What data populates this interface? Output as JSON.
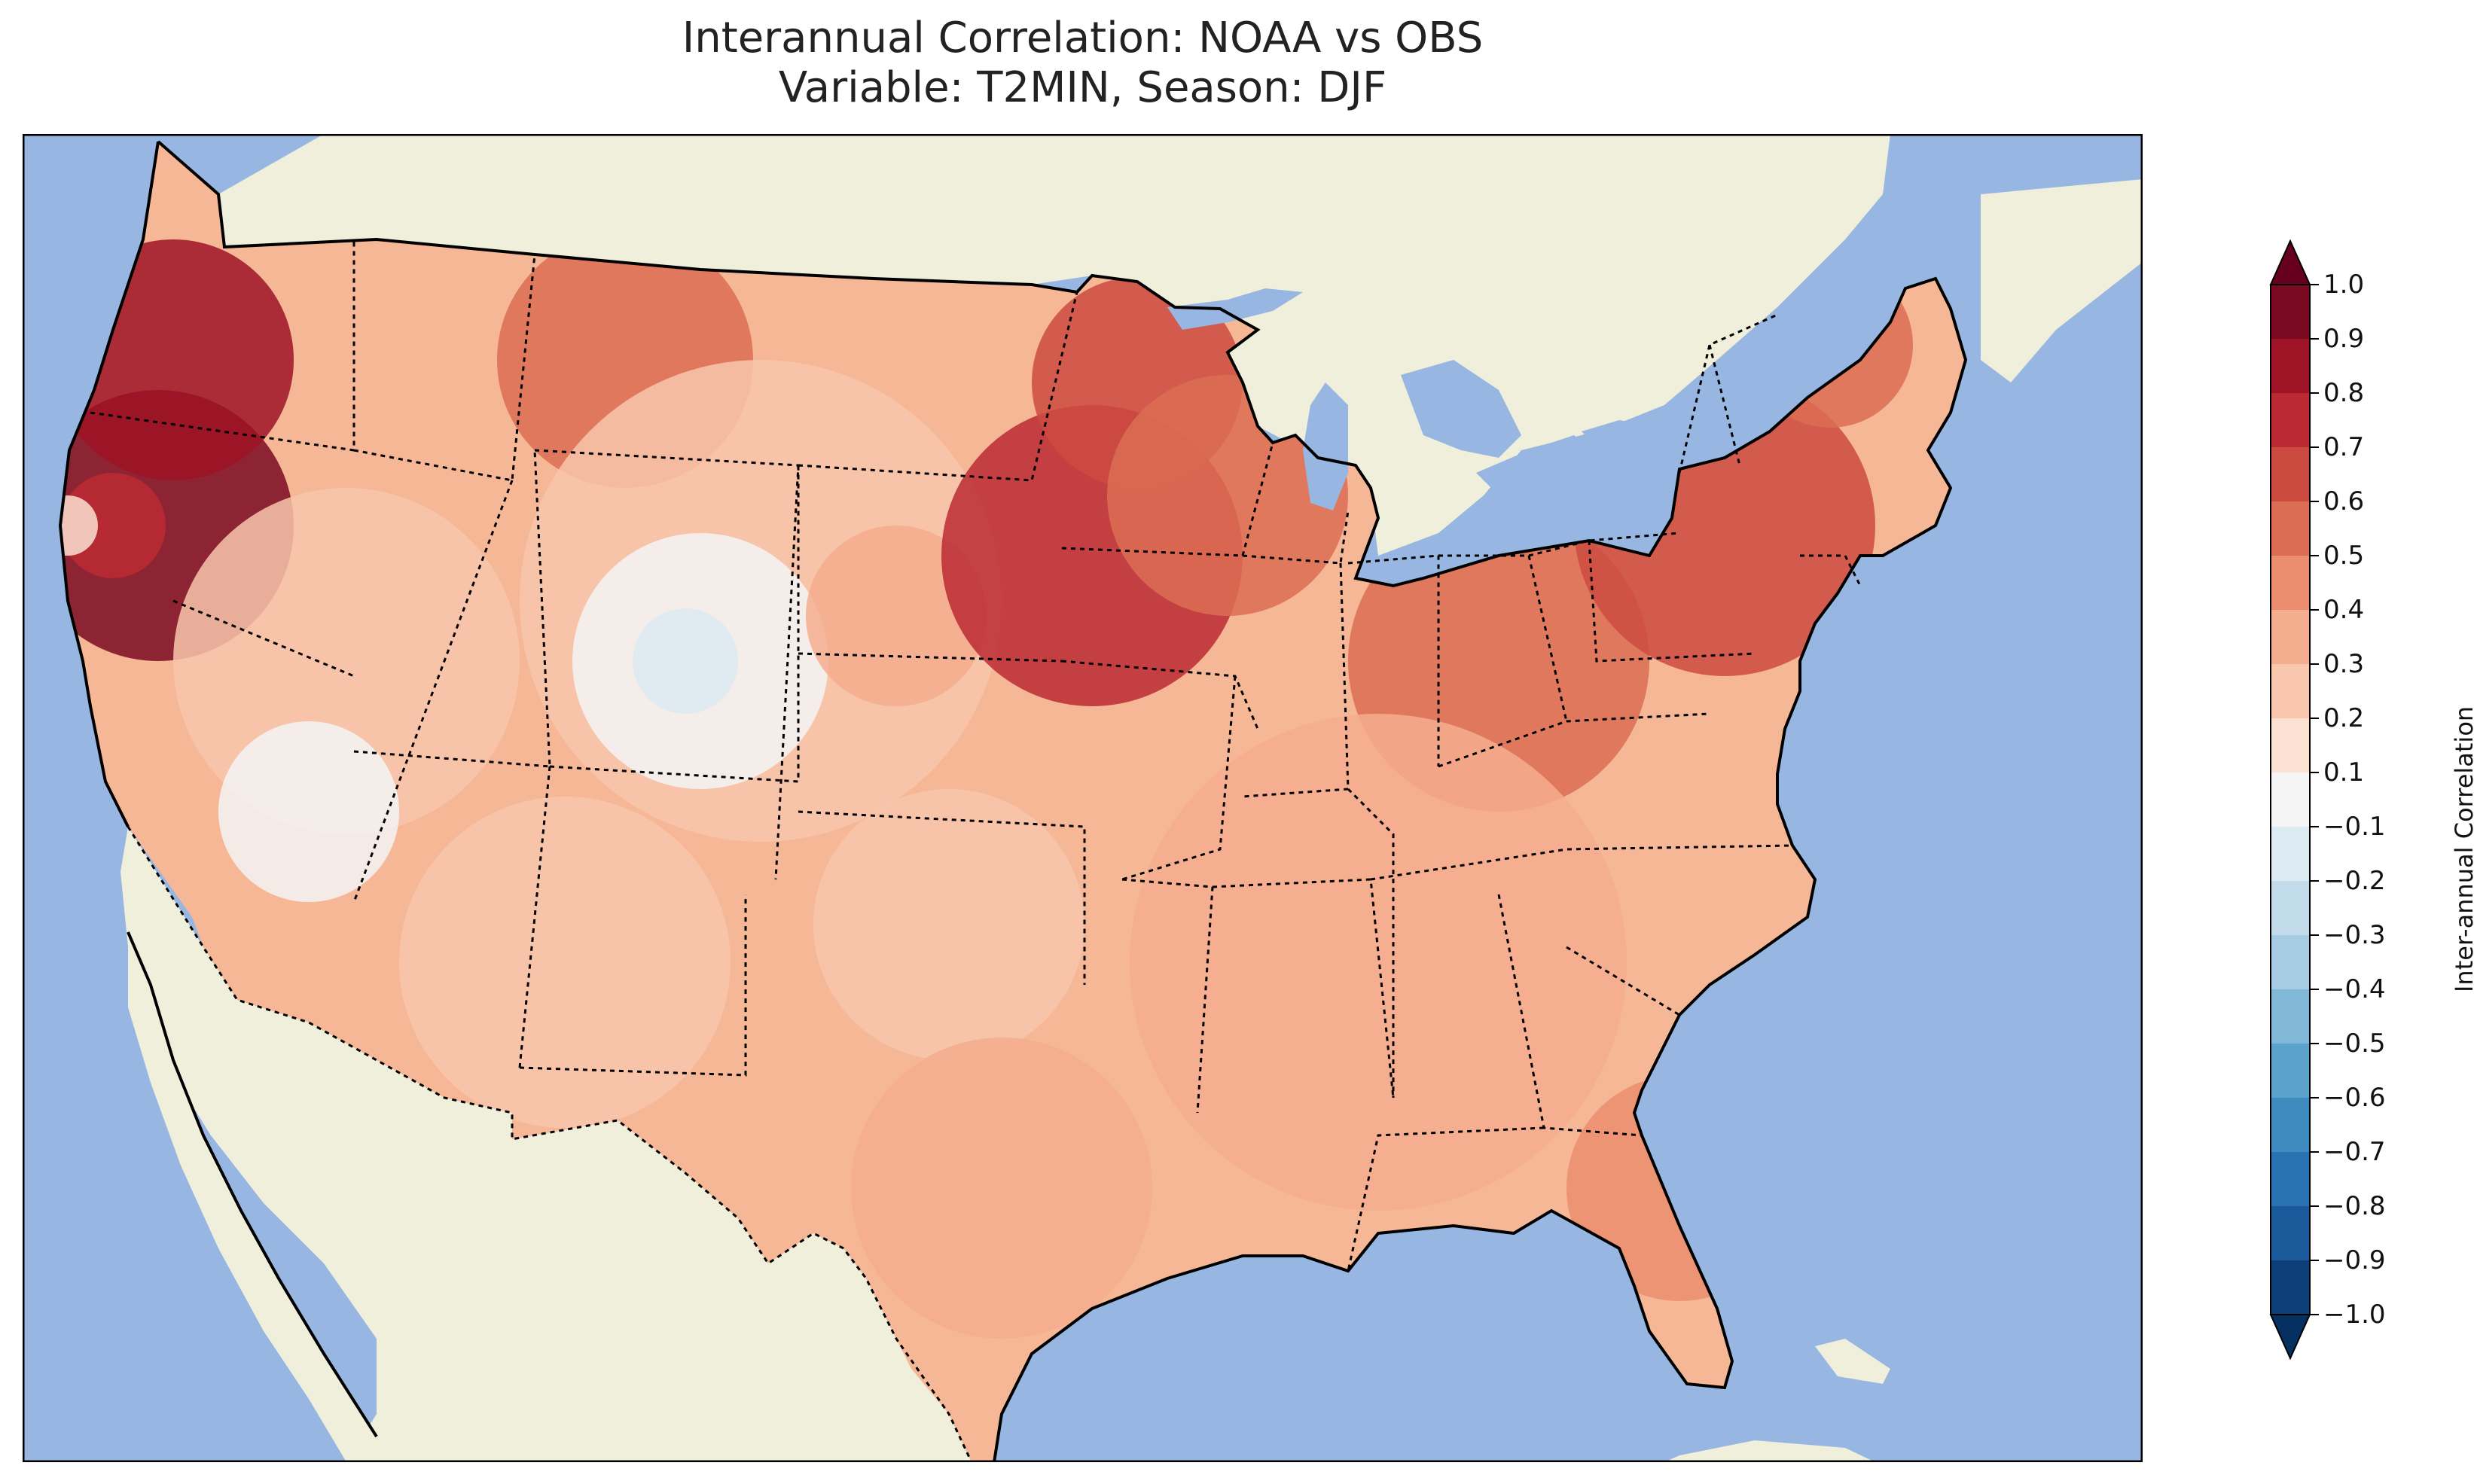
{
  "title": {
    "line1": "Interannual Correlation: NOAA vs OBS",
    "line2": "Variable: T2MIN, Season: DJF"
  },
  "colors": {
    "ocean": "#97b6e1",
    "land": "#efefdb",
    "lakes": "#97b6e1"
  },
  "colorbar": {
    "label": "Inter-annual Correlation",
    "ticks": [
      "1.0",
      "0.9",
      "0.8",
      "0.7",
      "0.6",
      "0.5",
      "0.4",
      "0.3",
      "0.2",
      "0.1",
      "−0.1",
      "−0.2",
      "−0.3",
      "−0.4",
      "−0.5",
      "−0.6",
      "−0.7",
      "−0.8",
      "−0.9",
      "−1.0"
    ],
    "bins": [
      {
        "range": "0.9 to 1.0",
        "color": "#7a0a22"
      },
      {
        "range": "0.8 to 0.9",
        "color": "#9e1326"
      },
      {
        "range": "0.7 to 0.8",
        "color": "#bb2a33"
      },
      {
        "range": "0.6 to 0.7",
        "color": "#cc4b41"
      },
      {
        "range": "0.5 to 0.6",
        "color": "#dc6d55"
      },
      {
        "range": "0.4 to 0.5",
        "color": "#ea8e6f"
      },
      {
        "range": "0.3 to 0.4",
        "color": "#f4ad8e"
      },
      {
        "range": "0.2 to 0.3",
        "color": "#f8c7ad"
      },
      {
        "range": "0.1 to 0.2",
        "color": "#fbe1d2"
      },
      {
        "range": "-0.1 to 0.1",
        "color": "#f5f5f5"
      },
      {
        "range": "-0.2 to -0.1",
        "color": "#dceaf2"
      },
      {
        "range": "-0.3 to -0.2",
        "color": "#c1dbeb"
      },
      {
        "range": "-0.4 to -0.3",
        "color": "#a5cce3"
      },
      {
        "range": "-0.5 to -0.4",
        "color": "#82b9d9"
      },
      {
        "range": "-0.6 to -0.5",
        "color": "#5ca3cc"
      },
      {
        "range": "-0.7 to -0.6",
        "color": "#3d8bbf"
      },
      {
        "range": "-0.8 to -0.7",
        "color": "#2872b1"
      },
      {
        "range": "-0.9 to -0.8",
        "color": "#1a5a9a"
      },
      {
        "range": "-1.0 to -0.9",
        "color": "#0d3f78"
      }
    ],
    "extend_max_color": "#67001f",
    "extend_min_color": "#053061"
  }
}
